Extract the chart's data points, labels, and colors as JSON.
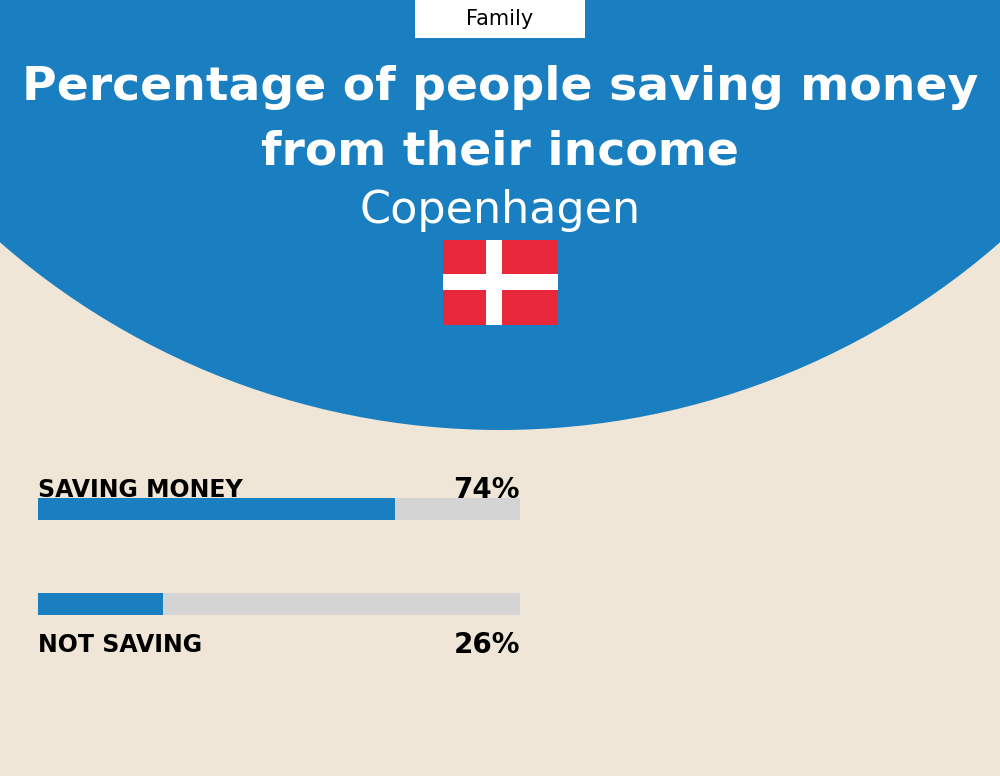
{
  "title_line1": "Percentage of people saving money",
  "title_line2": "from their income",
  "subtitle": "Copenhagen",
  "category_label": "Family",
  "bg_color": "#f0e6d8",
  "blue_color": "#1a7fc1",
  "bar_bg_color": "#d4d4d4",
  "bar1_label": "SAVING MONEY",
  "bar1_value": 74,
  "bar1_pct": "74%",
  "bar2_label": "NOT SAVING",
  "bar2_value": 26,
  "bar2_pct": "26%",
  "label_fontsize": 17,
  "pct_fontsize": 20,
  "title_fontsize": 34,
  "subtitle_fontsize": 32,
  "category_fontsize": 15,
  "flag_red": "#e8273a",
  "flag_white": "#ffffff"
}
